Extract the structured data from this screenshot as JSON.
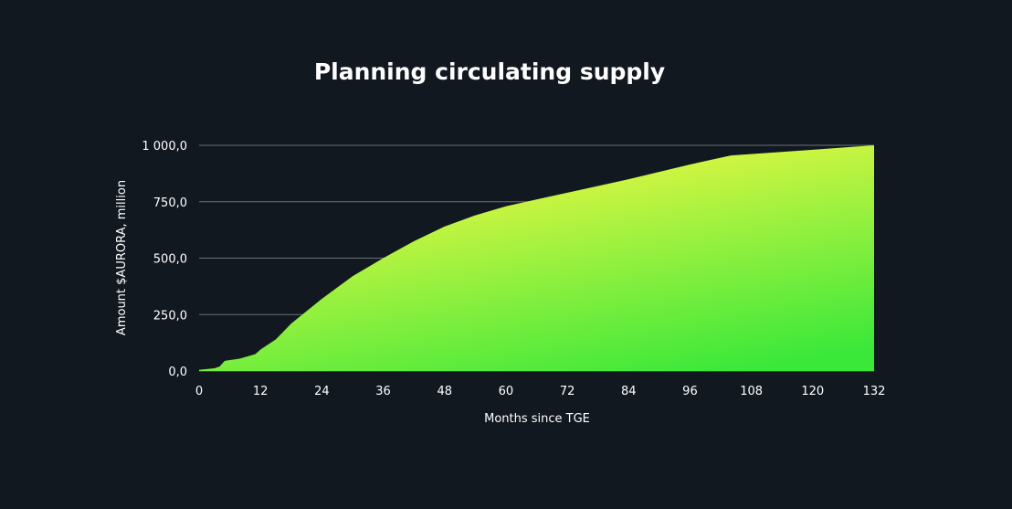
{
  "chart_data": {
    "type": "area",
    "title": "Planning circulating supply",
    "xlabel": "Months since TGE",
    "ylabel": "Amount $AURORA, million",
    "xlim": [
      0,
      132
    ],
    "ylim": [
      0,
      1000
    ],
    "x_ticks": [
      "0",
      "12",
      "24",
      "36",
      "48",
      "60",
      "72",
      "84",
      "96",
      "108",
      "120",
      "132"
    ],
    "y_ticks": [
      "0,0",
      "250,0",
      "500,0",
      "750,0",
      "1 000,0"
    ],
    "grid": "horizontal",
    "colors": {
      "background": "#111820",
      "fill_top": "#fbf944",
      "fill_bottom": "#3ae83a",
      "grid": "#6a7078"
    },
    "x": [
      0,
      3,
      4,
      5,
      8,
      11,
      12,
      15,
      18,
      21,
      24,
      27,
      30,
      33,
      36,
      42,
      48,
      54,
      60,
      66,
      72,
      84,
      96,
      104,
      120,
      132
    ],
    "values": [
      5,
      12,
      20,
      45,
      55,
      75,
      95,
      140,
      210,
      265,
      320,
      370,
      420,
      460,
      500,
      575,
      640,
      690,
      730,
      760,
      790,
      850,
      915,
      955,
      980,
      1000
    ]
  }
}
